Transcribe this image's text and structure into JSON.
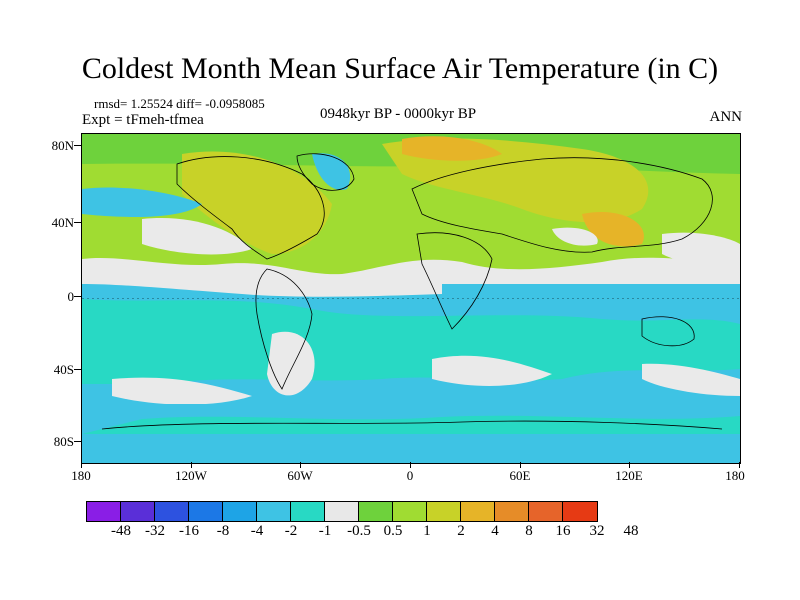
{
  "title": "Coldest Month Mean Surface Air Temperature (in C)",
  "stats": "rmsd= 1.25524 diff= -0.0958085",
  "experiment": "Expt = tFmeh-tfmea",
  "period": "0948kyr BP - 0000kyr BP",
  "season": "ANN",
  "axes": {
    "lat_labels": [
      "80N",
      "40N",
      "0",
      "40S",
      "80S"
    ],
    "lon_labels": [
      "180",
      "120W",
      "60W",
      "0",
      "60E",
      "120E",
      "180"
    ]
  },
  "colorbar": {
    "colors": [
      "#8a1ee6",
      "#5a2fd8",
      "#2d52e0",
      "#1c78e6",
      "#1ea4e6",
      "#3ec3e4",
      "#28d9c4",
      "#e8e8e8",
      "#6ed23c",
      "#a0dc32",
      "#c8d228",
      "#e6b428",
      "#e68c28",
      "#e6642a",
      "#e63a14"
    ],
    "labels": [
      "-48",
      "-32",
      "-16",
      "-8",
      "-4",
      "-2",
      "-1",
      "-0.5",
      "0.5",
      "1",
      "2",
      "4",
      "8",
      "16",
      "32",
      "48"
    ]
  }
}
